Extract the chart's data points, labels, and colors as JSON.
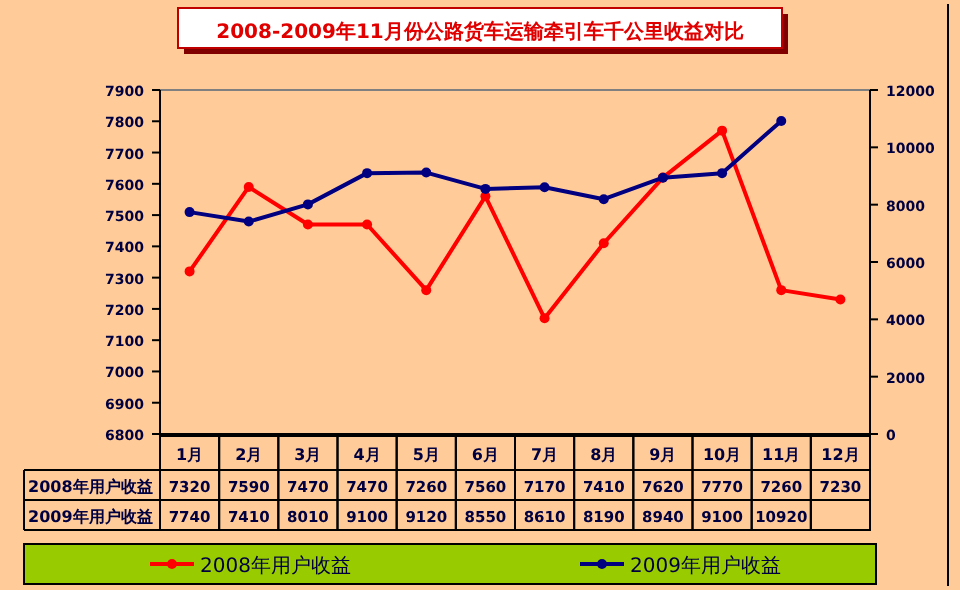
{
  "chart_data": {
    "type": "line",
    "title": "2008-2009年11月份公路货车运输牵引车千公里收益对比",
    "categories": [
      "1月",
      "2月",
      "3月",
      "4月",
      "5月",
      "6月",
      "7月",
      "8月",
      "9月",
      "10月",
      "11月",
      "12月"
    ],
    "series": [
      {
        "name": "2008年用户收益",
        "color": "#ff0000",
        "values": [
          7320,
          7590,
          7470,
          7470,
          7260,
          7560,
          7170,
          7410,
          7620,
          7770,
          7260,
          7230
        ]
      },
      {
        "name": "2009年用户收益",
        "color": "#000080",
        "axis": "y2",
        "values": [
          7740,
          7410,
          8010,
          9100,
          9120,
          8550,
          8610,
          8190,
          8940,
          9100,
          10920,
          null
        ]
      }
    ],
    "ylim": [
      6800,
      7900
    ],
    "yticks": [
      6800,
      6900,
      7000,
      7100,
      7200,
      7300,
      7400,
      7500,
      7600,
      7700,
      7800,
      7900
    ],
    "y2lim": [
      0,
      12000
    ],
    "y2ticks": [
      0,
      2000,
      4000,
      6000,
      8000,
      10000,
      12000
    ],
    "data_labels": true,
    "legend": "bottom",
    "marker": "circle",
    "line_style": "solid",
    "grid": false
  }
}
